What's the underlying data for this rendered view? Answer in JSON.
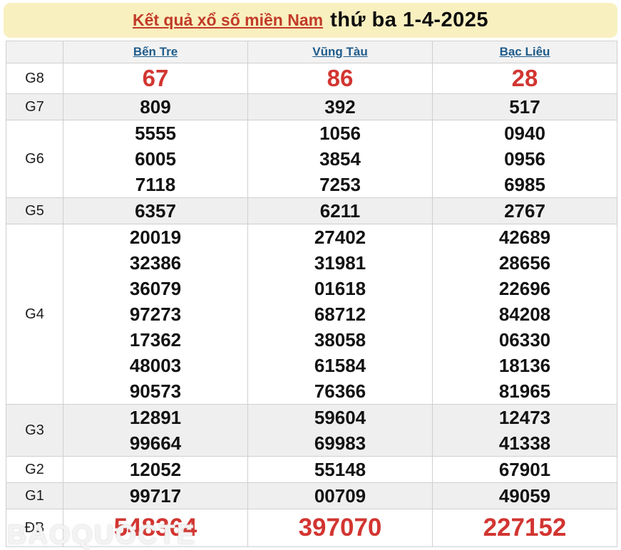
{
  "header": {
    "title_link": "Kết quả xổ số miền Nam",
    "title_date": "thứ ba 1-4-2025"
  },
  "table": {
    "provinces": [
      "Bến Tre",
      "Vũng Tàu",
      "Bạc Liêu"
    ],
    "rows": [
      {
        "label": "G8",
        "emphasis": "special",
        "values": [
          [
            "67"
          ],
          [
            "86"
          ],
          [
            "28"
          ]
        ]
      },
      {
        "label": "G7",
        "emphasis": null,
        "values": [
          [
            "809"
          ],
          [
            "392"
          ],
          [
            "517"
          ]
        ]
      },
      {
        "label": "G6",
        "emphasis": null,
        "values": [
          [
            "5555",
            "6005",
            "7118"
          ],
          [
            "1056",
            "3854",
            "7253"
          ],
          [
            "0940",
            "0956",
            "6985"
          ]
        ]
      },
      {
        "label": "G5",
        "emphasis": null,
        "values": [
          [
            "6357"
          ],
          [
            "6211"
          ],
          [
            "2767"
          ]
        ]
      },
      {
        "label": "G4",
        "emphasis": null,
        "values": [
          [
            "20019",
            "32386",
            "36079",
            "97273",
            "17362",
            "48003",
            "90573"
          ],
          [
            "27402",
            "31981",
            "01618",
            "68712",
            "38058",
            "61584",
            "76366"
          ],
          [
            "42689",
            "28656",
            "22696",
            "84208",
            "06330",
            "18136",
            "81965"
          ]
        ]
      },
      {
        "label": "G3",
        "emphasis": null,
        "values": [
          [
            "12891",
            "99664"
          ],
          [
            "59604",
            "69983"
          ],
          [
            "12473",
            "41338"
          ]
        ]
      },
      {
        "label": "G2",
        "emphasis": null,
        "values": [
          [
            "12052"
          ],
          [
            "55148"
          ],
          [
            "67901"
          ]
        ]
      },
      {
        "label": "G1",
        "emphasis": null,
        "values": [
          [
            "99717"
          ],
          [
            "00709"
          ],
          [
            "49059"
          ]
        ]
      },
      {
        "label": "ĐB",
        "emphasis": "jackpot",
        "values": [
          [
            "548364"
          ],
          [
            "397070"
          ],
          [
            "227152"
          ]
        ]
      }
    ]
  },
  "watermark": "BAOQUOCTE",
  "colors": {
    "banner_bg": "#F9F0C0",
    "title_red": "#C23B28",
    "province_blue": "#1F5C8B",
    "prize_red": "#D23531",
    "shaded_row": "#EFEFEF",
    "border": "#CFCFCF"
  }
}
